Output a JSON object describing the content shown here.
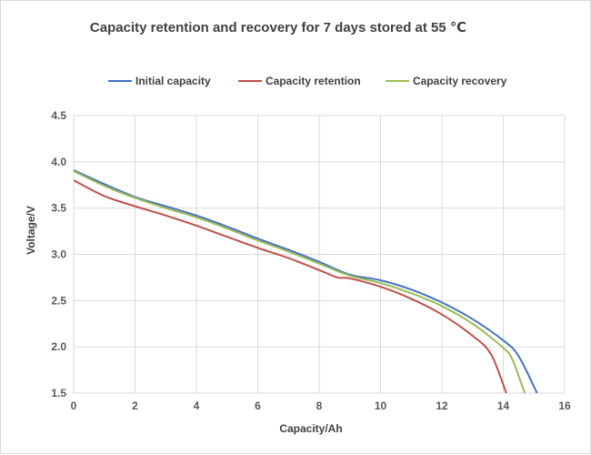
{
  "chart_data": {
    "type": "line",
    "title": "Capacity retention and recovery for 7 days stored at 55 ℃",
    "xlabel": "Capacity/Ah",
    "ylabel": "Voltage/V",
    "xlim": [
      0,
      16
    ],
    "ylim": [
      1.5,
      4.5
    ],
    "x_ticks": [
      0,
      2,
      4,
      6,
      8,
      10,
      12,
      14,
      16
    ],
    "y_ticks": [
      1.5,
      2.0,
      2.5,
      3.0,
      3.5,
      4.0,
      4.5
    ],
    "x_tick_labels": [
      "0",
      "2",
      "4",
      "6",
      "8",
      "10",
      "12",
      "14",
      "16"
    ],
    "y_tick_labels": [
      "1.5",
      "2.0",
      "2.5",
      "3.0",
      "3.5",
      "4.0",
      "4.5"
    ],
    "grid": true,
    "legend_position": "top",
    "series": [
      {
        "name": "Initial capacity",
        "color": "#4472C4",
        "points": [
          [
            0,
            3.91
          ],
          [
            1,
            3.76
          ],
          [
            2,
            3.62
          ],
          [
            3,
            3.52
          ],
          [
            4,
            3.42
          ],
          [
            5,
            3.3
          ],
          [
            6,
            3.17
          ],
          [
            7,
            3.05
          ],
          [
            8,
            2.92
          ],
          [
            9,
            2.78
          ],
          [
            10,
            2.72
          ],
          [
            11,
            2.62
          ],
          [
            12,
            2.48
          ],
          [
            13,
            2.3
          ],
          [
            14,
            2.07
          ],
          [
            14.5,
            1.9
          ],
          [
            15.1,
            1.5
          ]
        ]
      },
      {
        "name": "Capacity retention",
        "color": "#C0504D",
        "points": [
          [
            0,
            3.8
          ],
          [
            1,
            3.63
          ],
          [
            2,
            3.52
          ],
          [
            3,
            3.42
          ],
          [
            4,
            3.31
          ],
          [
            5,
            3.19
          ],
          [
            6,
            3.07
          ],
          [
            7,
            2.96
          ],
          [
            8,
            2.83
          ],
          [
            8.6,
            2.75
          ],
          [
            9,
            2.74
          ],
          [
            10,
            2.65
          ],
          [
            11,
            2.52
          ],
          [
            12,
            2.35
          ],
          [
            13,
            2.12
          ],
          [
            13.6,
            1.92
          ],
          [
            14.1,
            1.5
          ]
        ]
      },
      {
        "name": "Capacity recovery",
        "color": "#9BBB59",
        "points": [
          [
            0,
            3.9
          ],
          [
            1,
            3.74
          ],
          [
            2,
            3.61
          ],
          [
            3,
            3.5
          ],
          [
            4,
            3.4
          ],
          [
            5,
            3.28
          ],
          [
            6,
            3.15
          ],
          [
            7,
            3.03
          ],
          [
            8,
            2.9
          ],
          [
            9,
            2.77
          ],
          [
            10,
            2.69
          ],
          [
            11,
            2.58
          ],
          [
            12,
            2.44
          ],
          [
            13,
            2.25
          ],
          [
            14,
            1.99
          ],
          [
            14.3,
            1.86
          ],
          [
            14.7,
            1.5
          ]
        ]
      }
    ]
  }
}
